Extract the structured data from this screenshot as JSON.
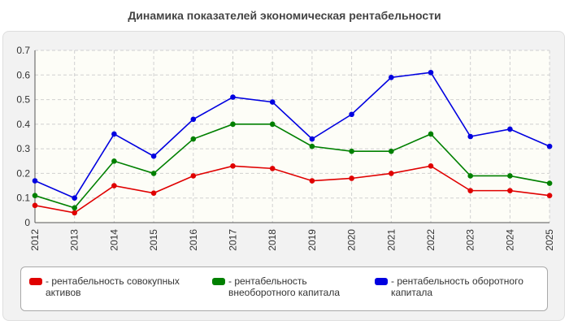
{
  "chart_data": {
    "type": "line",
    "title": "Динамика показателей экономическая рентабельности",
    "xlabel": "",
    "ylabel": "",
    "x": [
      "2012",
      "2013",
      "2014",
      "2015",
      "2016",
      "2017",
      "2018",
      "2019",
      "2020",
      "2021",
      "2022",
      "2023",
      "2024",
      "2025"
    ],
    "ylim": [
      0,
      0.7
    ],
    "yticks": [
      "0",
      "0.1",
      "0.2",
      "0.3",
      "0.4",
      "0.5",
      "0.6",
      "0.7"
    ],
    "grid": true,
    "legend_position": "bottom",
    "series": [
      {
        "name": "- рентабельность совокупных активов",
        "color": "#e00000",
        "values": [
          0.07,
          0.04,
          0.15,
          0.12,
          0.19,
          0.23,
          0.22,
          0.17,
          0.18,
          0.2,
          0.23,
          0.13,
          0.13,
          0.11
        ]
      },
      {
        "name": "- рентабельность внеоборотного капитала",
        "color": "#008000",
        "values": [
          0.11,
          0.06,
          0.25,
          0.2,
          0.34,
          0.4,
          0.4,
          0.31,
          0.29,
          0.29,
          0.36,
          0.19,
          0.19,
          0.16
        ]
      },
      {
        "name": "- рентабельность оборотного капитала",
        "color": "#0000e0",
        "values": [
          0.17,
          0.1,
          0.36,
          0.27,
          0.42,
          0.51,
          0.49,
          0.34,
          0.44,
          0.59,
          0.61,
          0.35,
          0.38,
          0.31
        ]
      }
    ]
  }
}
